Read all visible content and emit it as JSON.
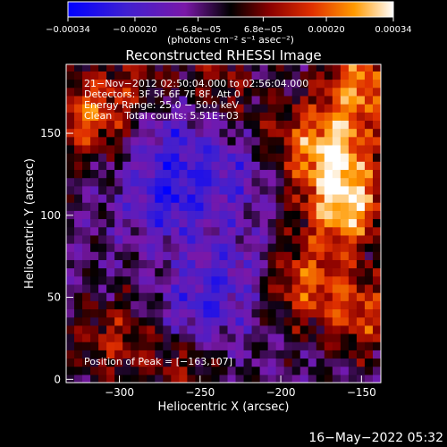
{
  "chart_data": {
    "type": "heatmap",
    "title": "Reconstructed RHESSI Image",
    "xlabel": "Heliocentric X (arcsec)",
    "ylabel": "Heliocentric Y (arcsec)",
    "xlim": [
      -333,
      -138
    ],
    "ylim": [
      -2,
      192
    ],
    "x_ticks": [
      -300,
      -250,
      -200,
      -150
    ],
    "x_tick_labels": [
      "−300",
      "−250",
      "−200",
      "−150"
    ],
    "y_ticks": [
      0,
      50,
      100,
      150
    ],
    "y_tick_labels": [
      "0",
      "50",
      "100",
      "150"
    ],
    "colorbar": {
      "range": [
        -0.00034,
        0.00034
      ],
      "tick_values": [
        -0.00034,
        -0.0002,
        -6.8e-05,
        6.8e-05,
        0.0002,
        0.00034
      ],
      "tick_labels": [
        "−0.00034",
        "−0.00020",
        "−6.8e−05",
        "6.8e−05",
        "0.00020",
        "0.00034"
      ],
      "unit_label": "(photons cm⁻² s⁻¹ asec⁻²)"
    },
    "annotations": [
      "21−Nov−2012 02:50:04.000 to 02:56:04.000",
      "Detectors: 3F 5F 6F 7F 8F, Att 0",
      "Energy Range: 25.0 − 50.0 keV",
      "Clean    Total counts: 5.51E+03"
    ],
    "peak_label": "Position of Peak = [−163,107]",
    "peak": [
      -163,
      107
    ],
    "hotspots": [
      {
        "x": -170,
        "y": 140,
        "v": 0.00034
      },
      {
        "x": -160,
        "y": 105,
        "v": 0.00034
      },
      {
        "x": -150,
        "y": 180,
        "v": 0.00028
      },
      {
        "x": -185,
        "y": 60,
        "v": 0.00022
      },
      {
        "x": -150,
        "y": 40,
        "v": 0.0002
      },
      {
        "x": -320,
        "y": 160,
        "v": 0.00024
      },
      {
        "x": -305,
        "y": 25,
        "v": 0.00016
      },
      {
        "x": -260,
        "y": 10,
        "v": 0.00014
      },
      {
        "x": -240,
        "y": 185,
        "v": 0.00012
      },
      {
        "x": -290,
        "y": 180,
        "v": 0.00012
      },
      {
        "x": -210,
        "y": 150,
        "v": 0.0001
      },
      {
        "x": -230,
        "y": 70,
        "v": -0.0001
      },
      {
        "x": -270,
        "y": 110,
        "v": -0.00018
      },
      {
        "x": -250,
        "y": 40,
        "v": -0.00016
      },
      {
        "x": -230,
        "y": 130,
        "v": -0.00014
      },
      {
        "x": -270,
        "y": 150,
        "v": -0.00012
      }
    ]
  },
  "footer_timestamp": "16−May−2022 05:32"
}
